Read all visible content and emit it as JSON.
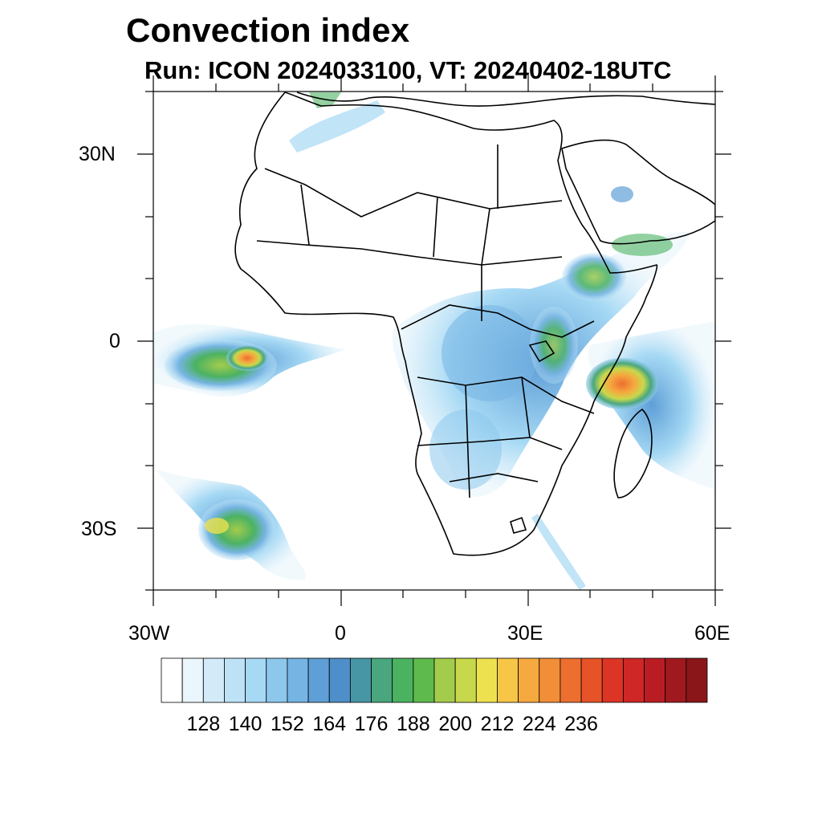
{
  "title": "Convection index",
  "subtitle": "Run: ICON 2024033100,  VT: 20240402-18UTC",
  "map": {
    "extent": {
      "lon": [
        -30,
        60
      ],
      "lat": [
        -40,
        40
      ]
    },
    "lat_labels": [
      "30N",
      "0",
      "30S"
    ],
    "lon_labels": [
      "30W",
      "0",
      "30E",
      "60E"
    ]
  },
  "colorbar": {
    "labels": [
      "128",
      "140",
      "152",
      "164",
      "176",
      "188",
      "200",
      "212",
      "224",
      "236"
    ],
    "colors": [
      "#ffffff",
      "#eaf5fc",
      "#d3ebf9",
      "#bde2f6",
      "#a6d9f4",
      "#8dc8ec",
      "#76b4e3",
      "#5f9fd7",
      "#4e8fc9",
      "#4796a6",
      "#49a67e",
      "#4bb262",
      "#5eba4c",
      "#a4cc4c",
      "#c8d84c",
      "#eee14f",
      "#f8c646",
      "#f6a93f",
      "#f28e38",
      "#ec6f30",
      "#e65329",
      "#dd3525",
      "#cf2626",
      "#b91d23",
      "#a0191e",
      "#8b1619"
    ]
  }
}
